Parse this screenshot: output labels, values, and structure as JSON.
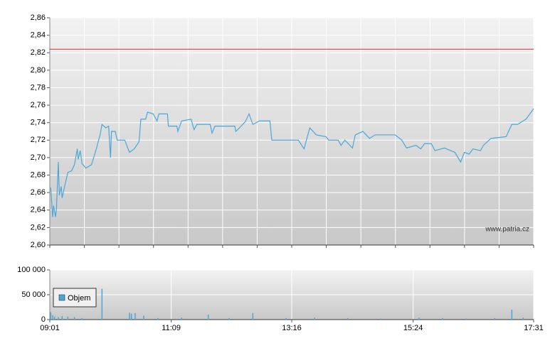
{
  "chart_data": [
    {
      "type": "line",
      "watermark": "www.patria.cz",
      "xlim": [
        "09:01",
        "17:31"
      ],
      "ylim": [
        2.6,
        2.86
      ],
      "yticks": [
        {
          "value": 2.6,
          "label": "2,60"
        },
        {
          "value": 2.62,
          "label": "2,62"
        },
        {
          "value": 2.64,
          "label": "2,64"
        },
        {
          "value": 2.66,
          "label": "2,66"
        },
        {
          "value": 2.68,
          "label": "2,68"
        },
        {
          "value": 2.7,
          "label": "2,70"
        },
        {
          "value": 2.72,
          "label": "2,72"
        },
        {
          "value": 2.74,
          "label": "2,74"
        },
        {
          "value": 2.76,
          "label": "2,76"
        },
        {
          "value": 2.78,
          "label": "2,78"
        },
        {
          "value": 2.8,
          "label": "2,80"
        },
        {
          "value": 2.82,
          "label": "2,82"
        },
        {
          "value": 2.84,
          "label": "2,84"
        },
        {
          "value": 2.86,
          "label": "2,86"
        }
      ],
      "grid": true,
      "reference_line": {
        "value": 2.824,
        "color": "#d03030"
      },
      "color": "#4aa8d8",
      "x": [
        "09:01",
        "09:02",
        "09:04",
        "09:05",
        "09:07",
        "09:08",
        "09:10",
        "09:11",
        "09:13",
        "09:14",
        "09:17",
        "09:20",
        "09:24",
        "09:27",
        "09:30",
        "09:31",
        "09:33",
        "09:35",
        "09:39",
        "09:45",
        "09:50",
        "09:54",
        "09:56",
        "10:00",
        "10:03",
        "10:05",
        "10:06",
        "10:10",
        "10:12",
        "10:20",
        "10:25",
        "10:30",
        "10:35",
        "10:37",
        "10:42",
        "10:44",
        "10:50",
        "10:54",
        "10:56",
        "11:05",
        "11:06",
        "11:15",
        "11:16",
        "11:20",
        "11:30",
        "11:33",
        "11:36",
        "11:50",
        "11:52",
        "11:55",
        "12:16",
        "12:17",
        "12:20",
        "12:27",
        "12:31",
        "12:35",
        "12:42",
        "12:53",
        "12:55",
        "13:23",
        "13:29",
        "13:35",
        "13:42",
        "13:52",
        "13:55",
        "14:05",
        "14:08",
        "14:12",
        "14:20",
        "14:23",
        "14:31",
        "14:38",
        "14:44",
        "15:05",
        "15:12",
        "15:17",
        "15:27",
        "15:32",
        "15:36",
        "15:43",
        "15:47",
        "15:57",
        "16:08",
        "16:14",
        "16:18",
        "16:23",
        "16:27",
        "16:35",
        "16:38",
        "16:46",
        "17:02",
        "17:08",
        "17:14",
        "17:23",
        "17:31"
      ],
      "values": [
        2.666,
        2.665,
        2.632,
        2.645,
        2.632,
        2.641,
        2.695,
        2.657,
        2.667,
        2.654,
        2.669,
        2.683,
        2.685,
        2.692,
        2.71,
        2.698,
        2.708,
        2.693,
        2.688,
        2.692,
        2.71,
        2.726,
        2.738,
        2.734,
        2.736,
        2.7,
        2.73,
        2.73,
        2.72,
        2.72,
        2.706,
        2.71,
        2.718,
        2.744,
        2.744,
        2.752,
        2.75,
        2.742,
        2.75,
        2.75,
        2.736,
        2.736,
        2.73,
        2.742,
        2.744,
        2.732,
        2.738,
        2.738,
        2.728,
        2.736,
        2.736,
        2.73,
        2.733,
        2.741,
        2.75,
        2.738,
        2.742,
        2.742,
        2.72,
        2.72,
        2.71,
        2.734,
        2.726,
        2.724,
        2.72,
        2.72,
        2.714,
        2.72,
        2.711,
        2.726,
        2.73,
        2.722,
        2.726,
        2.726,
        2.72,
        2.711,
        2.714,
        2.71,
        2.716,
        2.716,
        2.708,
        2.711,
        2.706,
        2.695,
        2.706,
        2.704,
        2.71,
        2.708,
        2.714,
        2.722,
        2.724,
        2.738,
        2.738,
        2.744,
        2.756
      ]
    },
    {
      "type": "bar",
      "legend": "Objem",
      "legend_position": "left",
      "color": "#4aa8d8",
      "xlim": [
        "09:01",
        "17:31"
      ],
      "xticks": [
        "09:01",
        "11:09",
        "13:16",
        "15:24",
        "17:31"
      ],
      "ylim": [
        0,
        100000
      ],
      "yticks": [
        {
          "value": 0,
          "label": "0"
        },
        {
          "value": 50000,
          "label": "50 000"
        },
        {
          "value": 100000,
          "label": "100 000"
        }
      ],
      "grid": true,
      "x": [
        "09:02",
        "09:04",
        "09:06",
        "09:10",
        "09:14",
        "09:20",
        "09:27",
        "09:35",
        "09:56",
        "10:25",
        "10:27",
        "10:31",
        "10:40",
        "10:55",
        "11:20",
        "11:48",
        "12:10",
        "12:35",
        "13:10",
        "13:40",
        "14:15",
        "14:50",
        "15:30",
        "15:55",
        "16:20",
        "16:50",
        "17:08",
        "17:20"
      ],
      "values": [
        15000,
        9000,
        6000,
        5000,
        7000,
        6000,
        5000,
        3000,
        62000,
        14000,
        12000,
        13000,
        8000,
        3000,
        4000,
        10000,
        3000,
        13000,
        3000,
        4000,
        3000,
        2000,
        4000,
        3000,
        2000,
        3000,
        20000,
        4000
      ]
    }
  ]
}
